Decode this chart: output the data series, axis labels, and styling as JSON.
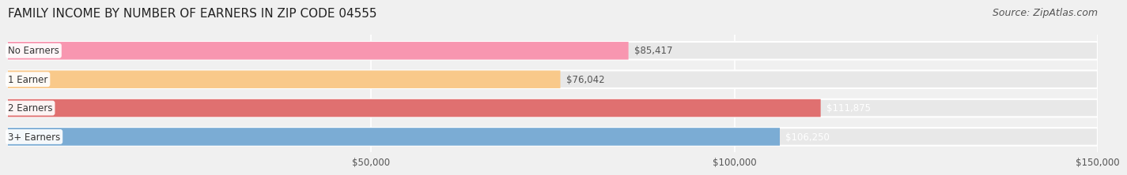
{
  "title": "FAMILY INCOME BY NUMBER OF EARNERS IN ZIP CODE 04555",
  "source": "Source: ZipAtlas.com",
  "categories": [
    "No Earners",
    "1 Earner",
    "2 Earners",
    "3+ Earners"
  ],
  "values": [
    85417,
    76042,
    111875,
    106250
  ],
  "bar_colors": [
    "#f896b0",
    "#f9c98a",
    "#e07070",
    "#7bacd4"
  ],
  "label_colors": [
    "#555555",
    "#555555",
    "#ffffff",
    "#555555"
  ],
  "xlim": [
    0,
    150000
  ],
  "xticks": [
    50000,
    100000,
    150000
  ],
  "xtick_labels": [
    "$50,000",
    "$100,000",
    "$150,000"
  ],
  "value_labels": [
    "$85,417",
    "$76,042",
    "$111,875",
    "$106,250"
  ],
  "background_color": "#f0f0f0",
  "bar_bg_color": "#e8e8e8",
  "title_fontsize": 11,
  "source_fontsize": 9
}
